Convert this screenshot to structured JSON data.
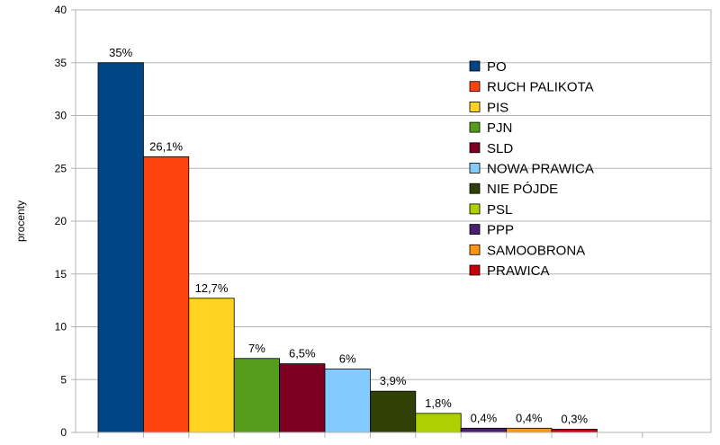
{
  "chart_data": {
    "type": "bar",
    "title": "",
    "xlabel": "",
    "ylabel": "procenty",
    "ylim": [
      0,
      40
    ],
    "yticks": [
      0,
      5,
      10,
      15,
      20,
      25,
      30,
      35,
      40
    ],
    "grid": true,
    "legend_position": "top-right",
    "series": [
      {
        "name": "PO",
        "value": 35,
        "label": "35%",
        "color": "#004586"
      },
      {
        "name": "RUCH PALIKOTA",
        "value": 26.1,
        "label": "26,1%",
        "color": "#ff420e"
      },
      {
        "name": "PIS",
        "value": 12.7,
        "label": "12,7%",
        "color": "#ffd320"
      },
      {
        "name": "PJN",
        "value": 7,
        "label": "7%",
        "color": "#579d1c"
      },
      {
        "name": "SLD",
        "value": 6.5,
        "label": "6,5%",
        "color": "#7e0021"
      },
      {
        "name": "NOWA PRAWICA",
        "value": 6,
        "label": "6%",
        "color": "#83caff"
      },
      {
        "name": "NIE PÓJDE",
        "value": 3.9,
        "label": "3,9%",
        "color": "#314004"
      },
      {
        "name": "PSL",
        "value": 1.8,
        "label": "1,8%",
        "color": "#aecf00"
      },
      {
        "name": "PPP",
        "value": 0.4,
        "label": "0,4%",
        "color": "#4b1f6f"
      },
      {
        "name": "SAMOOBRONA",
        "value": 0.4,
        "label": "0,4%",
        "color": "#ff950e"
      },
      {
        "name": "PRAWICA",
        "value": 0.3,
        "label": "0,3%",
        "color": "#c5000b"
      }
    ]
  }
}
